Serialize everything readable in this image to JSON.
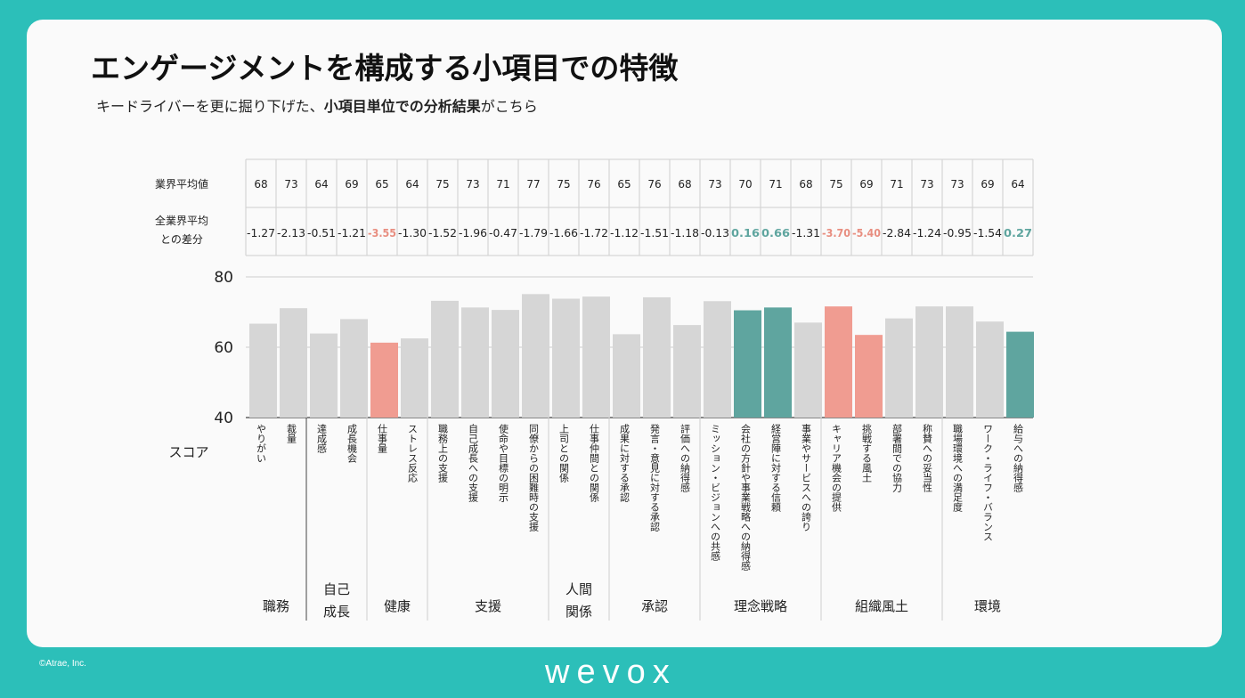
{
  "title": "エンゲージメントを構成する小項目での特徴",
  "subtitle_prefix": "キードライバーを更に掘り下げた、",
  "subtitle_bold": "小項目単位での分析結果",
  "subtitle_suffix": "がこちら",
  "row_avg_label": "業界平均値",
  "row_diff_label_1": "全業界平均",
  "row_diff_label_2": "との差分",
  "score_label": "スコア",
  "copyright": "©Atrae, Inc.",
  "logo": "wevox",
  "colors": {
    "bar_gray": "#d6d6d6",
    "bar_red": "#f09c91",
    "bar_teal": "#5fa59f",
    "diff_red": "#e88e80",
    "diff_teal": "#5fa59f",
    "background": "#2cbfb9"
  },
  "chart_data": {
    "type": "bar",
    "ylabel": "スコア",
    "ylim": [
      40,
      80
    ],
    "yticks": [
      "40",
      "60",
      "80"
    ],
    "categories": [
      "やりがい",
      "裁量",
      "達成感",
      "成長機会",
      "仕事量",
      "ストレス反応",
      "職務上の支援",
      "自己成長への支援",
      "使命や目標の明示",
      "同僚からの困難時の支援",
      "上司との関係",
      "仕事仲間との関係",
      "成果に対する承認",
      "発言・意見に対する承認",
      "評価への納得感",
      "ミッション・ビジョンへの共感",
      "会社の方針や事業戦略への納得感",
      "経営陣に対する信頼",
      "事業やサービスへの誇り",
      "キャリア機会の提供",
      "挑戦する風土",
      "部署間での協力",
      "称賛への妥当性",
      "職場環境への満足度",
      "ワーク・ライフ・バランス",
      "給与への納得感"
    ],
    "values": [
      66.7,
      71.1,
      63.9,
      68.0,
      61.3,
      62.5,
      73.2,
      71.3,
      70.6,
      75.1,
      73.8,
      74.4,
      63.7,
      74.2,
      66.3,
      73.1,
      70.5,
      71.3,
      67.0,
      71.6,
      63.5,
      68.2,
      71.6,
      71.6,
      67.3,
      64.4
    ],
    "highlight": [
      "gray",
      "gray",
      "gray",
      "gray",
      "red",
      "gray",
      "gray",
      "gray",
      "gray",
      "gray",
      "gray",
      "gray",
      "gray",
      "gray",
      "gray",
      "gray",
      "teal",
      "teal",
      "gray",
      "red",
      "red",
      "gray",
      "gray",
      "gray",
      "gray",
      "teal"
    ],
    "industry_avg": [
      "68",
      "73",
      "64",
      "69",
      "65",
      "64",
      "75",
      "73",
      "71",
      "77",
      "75",
      "76",
      "65",
      "76",
      "68",
      "73",
      "70",
      "71",
      "68",
      "75",
      "69",
      "71",
      "73",
      "73",
      "69",
      "64"
    ],
    "diff": [
      "-1.27",
      "-2.13",
      "-0.51",
      "-1.21",
      "-3.55",
      "-1.30",
      "-1.52",
      "-1.96",
      "-0.47",
      "-1.79",
      "-1.66",
      "-1.72",
      "-1.12",
      "-1.51",
      "-1.18",
      "-0.13",
      "0.16",
      "0.66",
      "-1.31",
      "-3.70",
      "-5.40",
      "-2.84",
      "-1.24",
      "-0.95",
      "-1.54",
      "0.27"
    ],
    "diff_highlight": [
      "none",
      "none",
      "none",
      "none",
      "red",
      "none",
      "none",
      "none",
      "none",
      "none",
      "none",
      "none",
      "none",
      "none",
      "none",
      "none",
      "teal",
      "teal",
      "none",
      "red",
      "red",
      "none",
      "none",
      "none",
      "none",
      "teal"
    ],
    "groups": [
      {
        "name": "職務",
        "count": 2
      },
      {
        "name": "自己\n成長",
        "count": 2
      },
      {
        "name": "健康",
        "count": 2
      },
      {
        "name": "支援",
        "count": 4
      },
      {
        "name": "人間\n関係",
        "count": 2
      },
      {
        "name": "承認",
        "count": 3
      },
      {
        "name": "理念戦略",
        "count": 4
      },
      {
        "name": "組織風土",
        "count": 4
      },
      {
        "name": "環境",
        "count": 3
      }
    ]
  }
}
